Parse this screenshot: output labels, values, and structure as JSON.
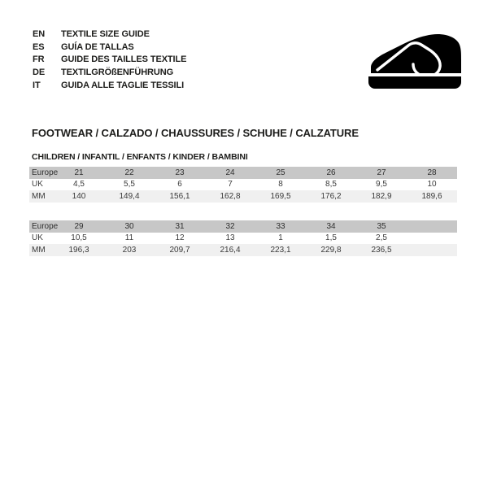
{
  "header": {
    "languages": [
      {
        "code": "EN",
        "label": "TEXTILE SIZE GUIDE"
      },
      {
        "code": "ES",
        "label": "GUÍA DE TALLAS"
      },
      {
        "code": "FR",
        "label": "GUIDE DES TAILLES TEXTILE"
      },
      {
        "code": "DE",
        "label": "TEXTILGRÖßENFÜHRUNG"
      },
      {
        "code": "IT",
        "label": "GUIDA ALLE TAGLIE TESSILI"
      }
    ],
    "logo_icon": "shoe-icon"
  },
  "section": {
    "title": "FOOTWEAR / CALZADO / CHAUSSURES / SCHUHE / CALZATURE",
    "subtitle": "CHILDREN / INFANTIL / ENFANTS / KINDER / BAMBINI"
  },
  "tables": [
    {
      "rows": [
        {
          "label": "Europe",
          "values": [
            "21",
            "22",
            "23",
            "24",
            "25",
            "26",
            "27",
            "28"
          ]
        },
        {
          "label": "UK",
          "values": [
            "4,5",
            "5,5",
            "6",
            "7",
            "8",
            "8,5",
            "9,5",
            "10"
          ]
        },
        {
          "label": "MM",
          "values": [
            "140",
            "149,4",
            "156,1",
            "162,8",
            "169,5",
            "176,2",
            "182,9",
            "189,6"
          ]
        }
      ]
    },
    {
      "rows": [
        {
          "label": "Europe",
          "values": [
            "29",
            "30",
            "31",
            "32",
            "33",
            "34",
            "35",
            ""
          ]
        },
        {
          "label": "UK",
          "values": [
            "10,5",
            "11",
            "12",
            "13",
            "1",
            "1,5",
            "2,5",
            ""
          ]
        },
        {
          "label": "MM",
          "values": [
            "196,3",
            "203",
            "209,7",
            "216,4",
            "223,1",
            "229,8",
            "236,5",
            ""
          ]
        }
      ]
    }
  ],
  "colors": {
    "page_bg": "#ffffff",
    "text": "#1d1d1b",
    "table_text": "#3a3a3a",
    "header_row_bg": "#c7c7c7",
    "alt_row_bg": "#f0f0f0",
    "logo": "#000000"
  }
}
